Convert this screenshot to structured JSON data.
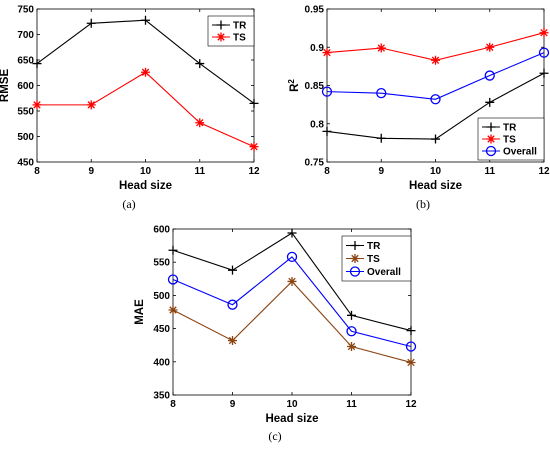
{
  "figure": {
    "caption_a": "(a)",
    "caption_b": "(b)",
    "caption_c": "(c)"
  },
  "chart_data": [
    {
      "id": "a",
      "type": "line",
      "xlabel": "Head size",
      "ylabel": "RMSE",
      "x": [
        8,
        9,
        10,
        11,
        12
      ],
      "xticks": [
        "8",
        "9",
        "10",
        "11",
        "12"
      ],
      "xlim": [
        8,
        12
      ],
      "ylim": [
        450,
        750
      ],
      "yticks": [
        "450",
        "500",
        "550",
        "600",
        "650",
        "700",
        "750"
      ],
      "legend_position": "top-right",
      "grid": false,
      "series": [
        {
          "name": "TR",
          "color": "#000000",
          "marker": "plus",
          "values": [
            643,
            722,
            728,
            643,
            565
          ]
        },
        {
          "name": "TS",
          "color": "#ff0000",
          "marker": "asterisk",
          "values": [
            562,
            562,
            626,
            527,
            480
          ]
        }
      ]
    },
    {
      "id": "b",
      "type": "line",
      "xlabel": "Head size",
      "ylabel": "R",
      "ylabel_superscript": "2",
      "x": [
        8,
        9,
        10,
        11,
        12
      ],
      "xticks": [
        "8",
        "9",
        "10",
        "11",
        "12"
      ],
      "xlim": [
        8,
        12
      ],
      "ylim": [
        0.75,
        0.95
      ],
      "yticks": [
        "0.75",
        "0.8",
        "0.85",
        "0.9",
        "0.95"
      ],
      "legend_position": "bottom-right",
      "grid": false,
      "series": [
        {
          "name": "TR",
          "color": "#000000",
          "marker": "plus",
          "values": [
            0.79,
            0.781,
            0.78,
            0.828,
            0.866
          ]
        },
        {
          "name": "TS",
          "color": "#ff0000",
          "marker": "asterisk",
          "values": [
            0.893,
            0.899,
            0.883,
            0.9,
            0.919
          ]
        },
        {
          "name": "Overall",
          "color": "#0000ff",
          "marker": "circle",
          "values": [
            0.842,
            0.84,
            0.832,
            0.863,
            0.893
          ]
        }
      ]
    },
    {
      "id": "c",
      "type": "line",
      "xlabel": "Head size",
      "ylabel": "MAE",
      "x": [
        8,
        9,
        10,
        11,
        12
      ],
      "xticks": [
        "8",
        "9",
        "10",
        "11",
        "12"
      ],
      "xlim": [
        8,
        12
      ],
      "ylim": [
        350,
        600
      ],
      "yticks": [
        "350",
        "400",
        "450",
        "500",
        "550",
        "600"
      ],
      "legend_position": "top-right",
      "grid": false,
      "series": [
        {
          "name": "TR",
          "color": "#000000",
          "marker": "plus",
          "values": [
            568,
            538,
            594,
            470,
            447
          ]
        },
        {
          "name": "TS",
          "color": "#8b4513",
          "marker": "asterisk",
          "values": [
            478,
            432,
            521,
            423,
            399
          ]
        },
        {
          "name": "Overall",
          "color": "#0000ff",
          "marker": "circle",
          "values": [
            524,
            486,
            558,
            446,
            423
          ]
        }
      ]
    }
  ]
}
